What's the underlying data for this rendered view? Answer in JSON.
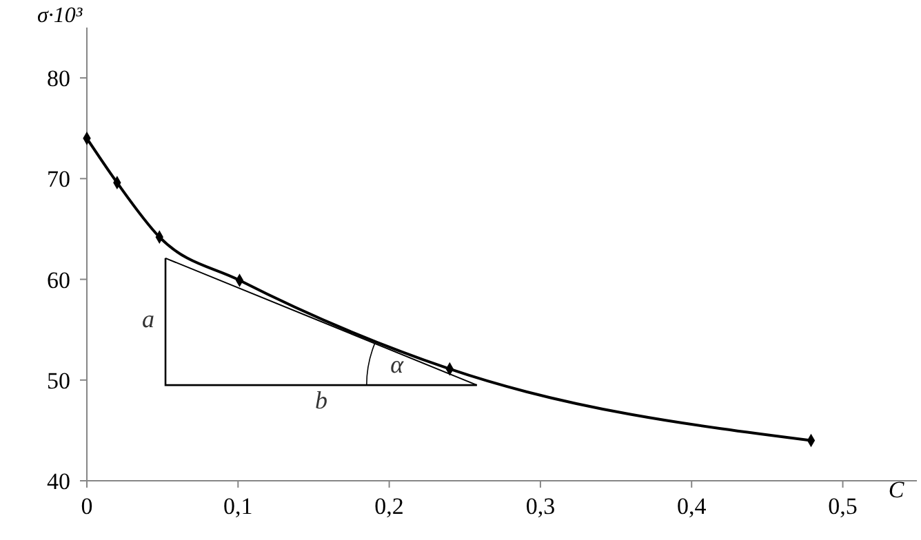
{
  "chart_data": {
    "type": "line",
    "xlabel": "C",
    "ylabel": "σ·10³",
    "xlim": [
      0,
      0.549
    ],
    "ylim": [
      40,
      85
    ],
    "xticks": [
      {
        "value": 0,
        "label": "0"
      },
      {
        "value": 0.1,
        "label": "0,1"
      },
      {
        "value": 0.2,
        "label": "0,2"
      },
      {
        "value": 0.3,
        "label": "0,3"
      },
      {
        "value": 0.4,
        "label": "0,4"
      },
      {
        "value": 0.5,
        "label": "0,5"
      }
    ],
    "yticks": [
      40,
      50,
      60,
      70,
      80
    ],
    "grid": false,
    "marker": "diamond",
    "series": [
      {
        "color": "#000000",
        "x": [
          0,
          0.02,
          0.048,
          0.101,
          0.24,
          0.479
        ],
        "values": [
          74.0,
          69.6,
          64.2,
          59.9,
          51.1,
          44.0
        ]
      },
      {
        "color": "#000000",
        "marker": "none",
        "x": [
          0.052,
          0.258
        ],
        "values": [
          62.1,
          49.5
        ]
      }
    ],
    "annotations": [
      "a",
      "b",
      "α"
    ]
  }
}
